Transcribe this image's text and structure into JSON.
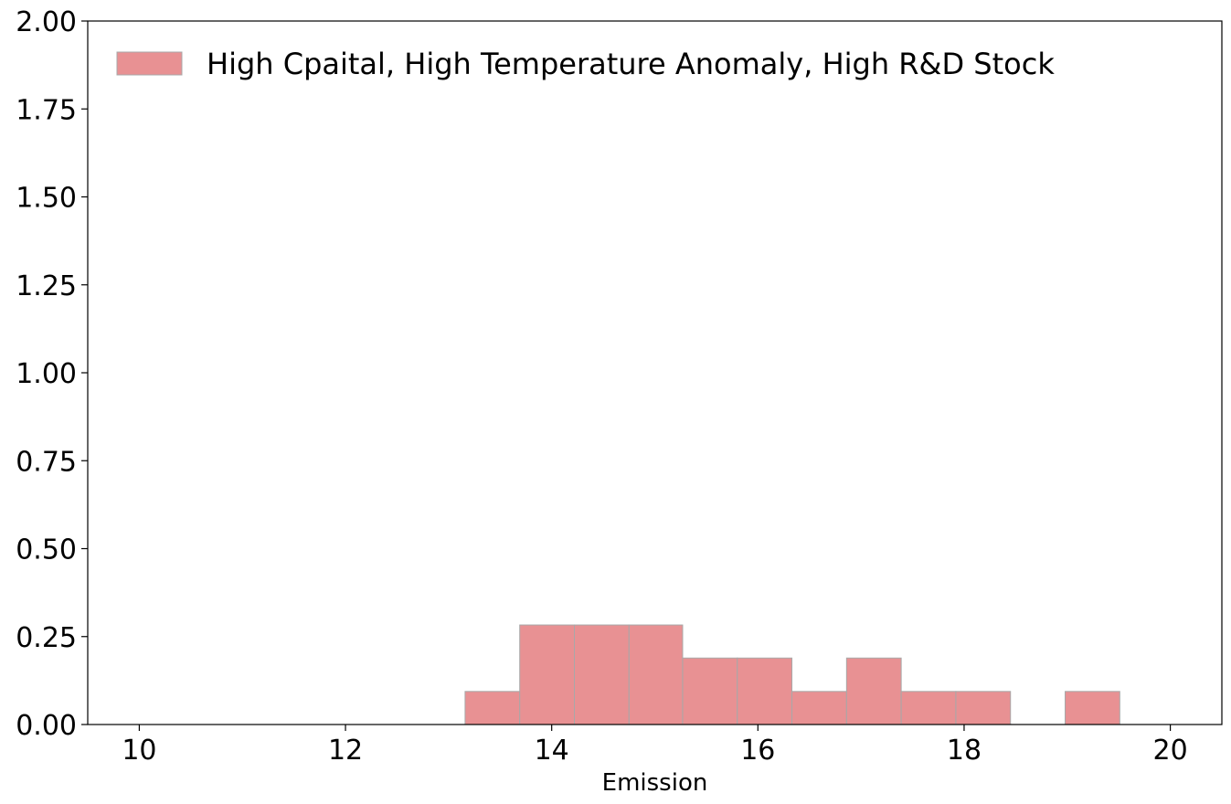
{
  "chart_data": {
    "type": "bar",
    "subtype": "histogram",
    "title": "",
    "xlabel": "Emission",
    "ylabel": "",
    "xlim": [
      9.5,
      20.5
    ],
    "ylim": [
      0,
      2.0
    ],
    "x_ticks": [
      10,
      12,
      14,
      16,
      18,
      20
    ],
    "x_tick_labels": [
      "10",
      "12",
      "14",
      "16",
      "18",
      "20"
    ],
    "y_ticks": [
      0.0,
      0.25,
      0.5,
      0.75,
      1.0,
      1.25,
      1.5,
      1.75,
      2.0
    ],
    "y_tick_labels": [
      "0.00",
      "0.25",
      "0.50",
      "0.75",
      "1.00",
      "1.25",
      "1.50",
      "1.75",
      "2.00"
    ],
    "grid": false,
    "legend_position": "top-left",
    "series": [
      {
        "name": "High Cpaital, High Temperature Anomaly, High R&D Stock",
        "color": "#e89193",
        "edge_color": "#a8a8a8",
        "bins": [
          {
            "x0": 13.16,
            "x1": 13.69,
            "value": 0.094
          },
          {
            "x0": 13.69,
            "x1": 14.22,
            "value": 0.283
          },
          {
            "x0": 14.22,
            "x1": 14.75,
            "value": 0.283
          },
          {
            "x0": 14.75,
            "x1": 15.27,
            "value": 0.283
          },
          {
            "x0": 15.27,
            "x1": 15.8,
            "value": 0.189
          },
          {
            "x0": 15.8,
            "x1": 16.33,
            "value": 0.189
          },
          {
            "x0": 16.33,
            "x1": 16.86,
            "value": 0.094
          },
          {
            "x0": 16.86,
            "x1": 17.39,
            "value": 0.189
          },
          {
            "x0": 17.39,
            "x1": 17.92,
            "value": 0.094
          },
          {
            "x0": 17.92,
            "x1": 18.45,
            "value": 0.094
          },
          {
            "x0": 18.45,
            "x1": 18.98,
            "value": 0.0
          },
          {
            "x0": 18.98,
            "x1": 19.51,
            "value": 0.094
          }
        ]
      }
    ]
  }
}
